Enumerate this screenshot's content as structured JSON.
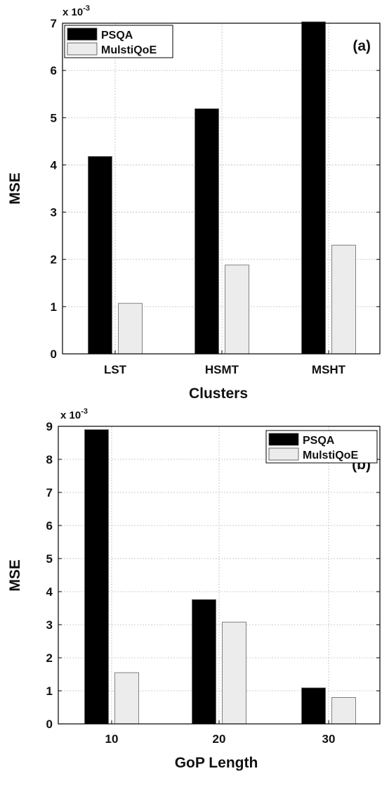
{
  "chart_data": [
    {
      "type": "bar",
      "panel_label": "(a)",
      "exponent_label": "x 10",
      "exponent_power": "-3",
      "xlabel": "Clusters",
      "ylabel": "MSE",
      "categories": [
        "LST",
        "HSMT",
        "MSHT"
      ],
      "series": [
        {
          "name": "PSQA",
          "values": [
            4.18,
            5.19,
            7.03
          ],
          "color": "#000000"
        },
        {
          "name": "MulstiQoE",
          "values": [
            1.07,
            1.88,
            2.3
          ],
          "color": "#ececec"
        }
      ],
      "ylim": [
        0,
        7
      ],
      "yticks": [
        "0",
        "1",
        "2",
        "3",
        "4",
        "5",
        "6",
        "7"
      ],
      "grid": true,
      "legend_position": "top-left"
    },
    {
      "type": "bar",
      "panel_label": "(b)",
      "exponent_label": "x 10",
      "exponent_power": "-3",
      "xlabel": "GoP Length",
      "ylabel": "MSE",
      "categories": [
        "10",
        "20",
        "30"
      ],
      "series": [
        {
          "name": "PSQA",
          "values": [
            8.9,
            3.76,
            1.09
          ],
          "color": "#000000"
        },
        {
          "name": "MulstiQoE",
          "values": [
            1.55,
            3.08,
            0.8
          ],
          "color": "#ececec"
        }
      ],
      "ylim": [
        0,
        9
      ],
      "yticks": [
        "0",
        "1",
        "2",
        "3",
        "4",
        "5",
        "6",
        "7",
        "8",
        "9"
      ],
      "grid": true,
      "legend_position": "top-right"
    }
  ]
}
